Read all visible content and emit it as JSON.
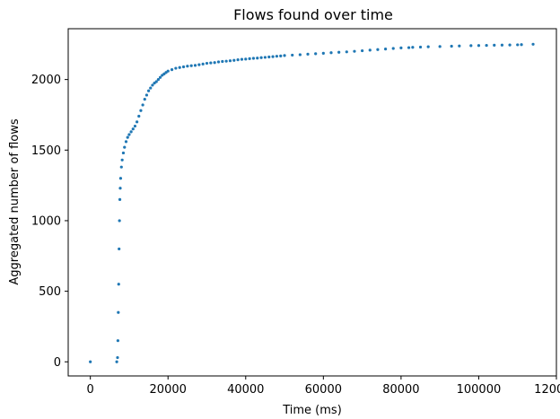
{
  "chart_data": {
    "type": "scatter",
    "title": "Flows found over time",
    "xlabel": "Time (ms)",
    "ylabel": "Aggregated number of flows",
    "xlim": [
      -5700,
      120000
    ],
    "ylim": [
      -100,
      2360
    ],
    "xticks": [
      0,
      20000,
      40000,
      60000,
      80000,
      100000,
      120000
    ],
    "xtick_labels": [
      "0",
      "20000",
      "40000",
      "60000",
      "80000",
      "100000",
      "120000"
    ],
    "yticks": [
      0,
      500,
      1000,
      1500,
      2000
    ],
    "ytick_labels": [
      "0",
      "500",
      "1000",
      "1500",
      "2000"
    ],
    "grid": false,
    "series": [
      {
        "color": "#1f77b4",
        "x": [
          0,
          6800,
          7000,
          7100,
          7200,
          7300,
          7400,
          7500,
          7600,
          7700,
          7800,
          8000,
          8200,
          8500,
          8800,
          9200,
          9600,
          10000,
          10500,
          11000,
          11500,
          12000,
          12500,
          13000,
          13500,
          14000,
          14500,
          15000,
          15500,
          16000,
          16500,
          17000,
          17500,
          18000,
          18500,
          19000,
          19500,
          20000,
          21000,
          22000,
          23000,
          24000,
          25000,
          26000,
          27000,
          28000,
          29000,
          30000,
          31000,
          32000,
          33000,
          34000,
          35000,
          36000,
          37000,
          38000,
          39000,
          40000,
          41000,
          42000,
          43000,
          44000,
          45000,
          46000,
          47000,
          48000,
          49000,
          50000,
          52000,
          54000,
          56000,
          58000,
          60000,
          62000,
          64000,
          66000,
          68000,
          70000,
          72000,
          74000,
          76000,
          78000,
          80000,
          82000,
          83000,
          85000,
          87000,
          90000,
          93000,
          95000,
          98000,
          100000,
          102000,
          104000,
          106000,
          108000,
          110000,
          111000,
          114000
        ],
        "y": [
          0,
          0,
          30,
          150,
          350,
          550,
          800,
          1000,
          1150,
          1230,
          1300,
          1380,
          1430,
          1480,
          1520,
          1560,
          1590,
          1610,
          1630,
          1650,
          1670,
          1700,
          1740,
          1780,
          1820,
          1860,
          1890,
          1920,
          1940,
          1960,
          1975,
          1985,
          2000,
          2015,
          2030,
          2040,
          2050,
          2060,
          2070,
          2080,
          2085,
          2090,
          2095,
          2098,
          2100,
          2105,
          2110,
          2115,
          2118,
          2120,
          2125,
          2128,
          2130,
          2133,
          2136,
          2140,
          2143,
          2145,
          2148,
          2150,
          2152,
          2155,
          2157,
          2160,
          2162,
          2165,
          2167,
          2170,
          2173,
          2176,
          2180,
          2183,
          2186,
          2190,
          2193,
          2196,
          2200,
          2204,
          2208,
          2212,
          2216,
          2220,
          2224,
          2226,
          2228,
          2230,
          2232,
          2234,
          2236,
          2238,
          2240,
          2241,
          2242,
          2243,
          2244,
          2245,
          2246,
          2247,
          2250
        ]
      }
    ]
  }
}
